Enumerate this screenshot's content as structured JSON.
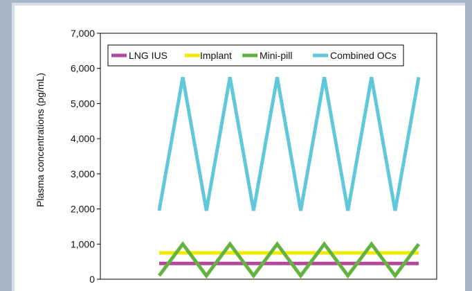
{
  "chart_data": {
    "type": "line",
    "title": "",
    "xlabel": "",
    "ylabel": "Plasma concentrations (pg/mL)",
    "ylim": [
      0,
      7000
    ],
    "yticks": [
      "0",
      "1,000",
      "2,000",
      "3,000",
      "4,000",
      "5,000",
      "6,000",
      "7,000"
    ],
    "grid": false,
    "legend": "top",
    "x": [
      0,
      1,
      2,
      3,
      4,
      5,
      6,
      7,
      8,
      9,
      10,
      11
    ],
    "series": [
      {
        "name": "LNG IUS",
        "color": "#b5489e",
        "values": [
          450,
          450,
          450,
          450,
          450,
          450,
          450,
          450,
          450,
          450,
          450,
          450
        ]
      },
      {
        "name": "Implant",
        "color": "#f2ea00",
        "values": [
          750,
          750,
          750,
          750,
          750,
          750,
          750,
          750,
          750,
          750,
          750,
          750
        ]
      },
      {
        "name": "Mini-pill",
        "color": "#62b33f",
        "values": [
          100,
          1000,
          100,
          1000,
          100,
          1000,
          100,
          1000,
          100,
          1000,
          100,
          1000
        ]
      },
      {
        "name": "Combined OCs",
        "color": "#61c8da",
        "values": [
          1950,
          5750,
          1950,
          5750,
          1950,
          5750,
          1950,
          5750,
          1950,
          5750,
          1950,
          5750
        ]
      }
    ]
  }
}
